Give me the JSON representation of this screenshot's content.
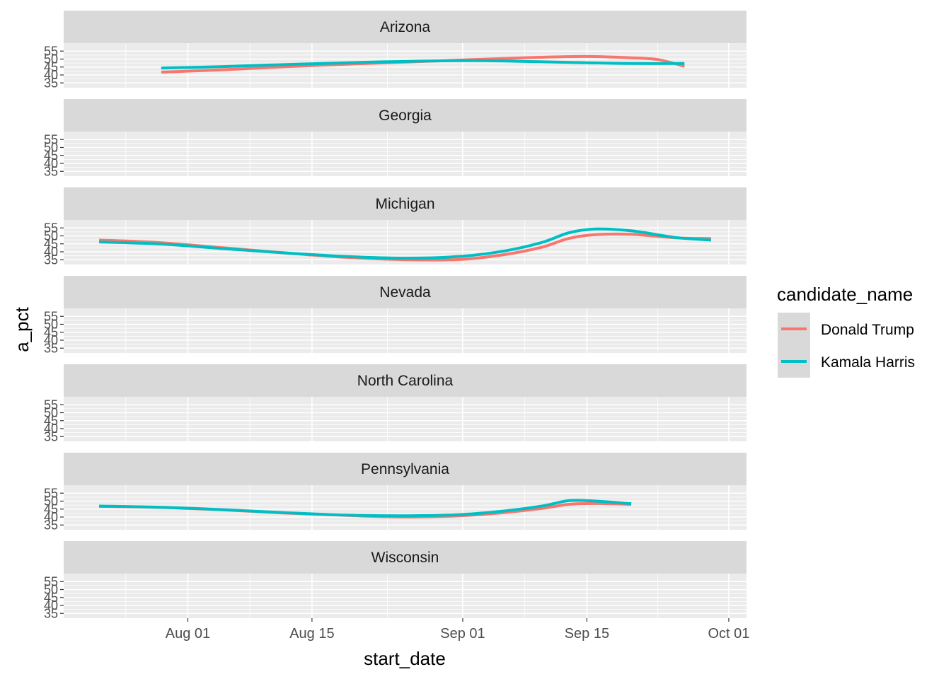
{
  "chart_data": {
    "type": "line",
    "xlabel": "start_date",
    "ylabel": "a_pct",
    "x_range": [
      "2024-07-18",
      "2024-10-03"
    ],
    "x_ticks": [
      {
        "date": "2024-08-01",
        "label": "Aug 01"
      },
      {
        "date": "2024-08-15",
        "label": "Aug 15"
      },
      {
        "date": "2024-09-01",
        "label": "Sep 01"
      },
      {
        "date": "2024-09-15",
        "label": "Sep 15"
      },
      {
        "date": "2024-10-01",
        "label": "Oct 01"
      }
    ],
    "ylim": [
      32,
      60
    ],
    "y_ticks": [
      35,
      40,
      45,
      50,
      55
    ],
    "grid": true,
    "legend": {
      "title": "candidate_name",
      "position": "right",
      "entries": [
        {
          "name": "Donald Trump",
          "color": "#F8766D"
        },
        {
          "name": "Kamala Harris",
          "color": "#00BFC4"
        }
      ]
    },
    "panels": [
      {
        "title": "Arizona",
        "series": [
          {
            "name": "Donald Trump",
            "color": "#F8766D",
            "points": [
              [
                "2024-07-29",
                41.8
              ],
              [
                "2024-08-05",
                43.3
              ],
              [
                "2024-08-12",
                45.2
              ],
              [
                "2024-08-19",
                46.8
              ],
              [
                "2024-08-26",
                48.2
              ],
              [
                "2024-09-02",
                49.6
              ],
              [
                "2024-09-09",
                51.0
              ],
              [
                "2024-09-15",
                51.6
              ],
              [
                "2024-09-20",
                50.8
              ],
              [
                "2024-09-23",
                49.7
              ],
              [
                "2024-09-26",
                45.4
              ]
            ]
          },
          {
            "name": "Kamala Harris",
            "color": "#00BFC4",
            "points": [
              [
                "2024-07-29",
                44.3
              ],
              [
                "2024-08-05",
                45.3
              ],
              [
                "2024-08-12",
                46.6
              ],
              [
                "2024-08-19",
                47.7
              ],
              [
                "2024-08-26",
                48.6
              ],
              [
                "2024-09-02",
                49.0
              ],
              [
                "2024-09-09",
                48.4
              ],
              [
                "2024-09-15",
                47.7
              ],
              [
                "2024-09-20",
                47.2
              ],
              [
                "2024-09-26",
                47.2
              ]
            ]
          }
        ]
      },
      {
        "title": "Georgia",
        "series": []
      },
      {
        "title": "Michigan",
        "series": [
          {
            "name": "Donald Trump",
            "color": "#F8766D",
            "points": [
              [
                "2024-07-22",
                47.4
              ],
              [
                "2024-07-29",
                45.7
              ],
              [
                "2024-08-05",
                42.5
              ],
              [
                "2024-08-12",
                39.3
              ],
              [
                "2024-08-19",
                36.5
              ],
              [
                "2024-08-26",
                35.0
              ],
              [
                "2024-09-01",
                35.3
              ],
              [
                "2024-09-06",
                38.5
              ],
              [
                "2024-09-10",
                43.0
              ],
              [
                "2024-09-13",
                48.5
              ],
              [
                "2024-09-16",
                50.8
              ],
              [
                "2024-09-20",
                51.0
              ],
              [
                "2024-09-25",
                48.8
              ],
              [
                "2024-09-29",
                48.3
              ]
            ]
          },
          {
            "name": "Kamala Harris",
            "color": "#00BFC4",
            "points": [
              [
                "2024-07-22",
                46.2
              ],
              [
                "2024-07-29",
                44.9
              ],
              [
                "2024-08-05",
                42.0
              ],
              [
                "2024-08-12",
                39.3
              ],
              [
                "2024-08-19",
                37.0
              ],
              [
                "2024-08-26",
                36.0
              ],
              [
                "2024-09-01",
                37.2
              ],
              [
                "2024-09-06",
                40.8
              ],
              [
                "2024-09-10",
                46.0
              ],
              [
                "2024-09-13",
                52.0
              ],
              [
                "2024-09-16",
                54.3
              ],
              [
                "2024-09-20",
                53.2
              ],
              [
                "2024-09-25",
                49.0
              ],
              [
                "2024-09-29",
                47.4
              ]
            ]
          }
        ]
      },
      {
        "title": "Nevada",
        "series": []
      },
      {
        "title": "North Carolina",
        "series": []
      },
      {
        "title": "Pennsylvania",
        "series": [
          {
            "name": "Donald Trump",
            "color": "#F8766D",
            "points": [
              [
                "2024-07-22",
                46.7
              ],
              [
                "2024-07-29",
                46.0
              ],
              [
                "2024-08-05",
                44.5
              ],
              [
                "2024-08-12",
                42.5
              ],
              [
                "2024-08-19",
                41.0
              ],
              [
                "2024-08-26",
                40.0
              ],
              [
                "2024-09-01",
                40.9
              ],
              [
                "2024-09-06",
                43.0
              ],
              [
                "2024-09-10",
                45.5
              ],
              [
                "2024-09-13",
                48.0
              ],
              [
                "2024-09-16",
                48.5
              ],
              [
                "2024-09-20",
                48.0
              ]
            ]
          },
          {
            "name": "Kamala Harris",
            "color": "#00BFC4",
            "points": [
              [
                "2024-07-22",
                46.9
              ],
              [
                "2024-07-29",
                46.1
              ],
              [
                "2024-08-05",
                44.6
              ],
              [
                "2024-08-12",
                42.7
              ],
              [
                "2024-08-19",
                41.2
              ],
              [
                "2024-08-26",
                40.8
              ],
              [
                "2024-09-01",
                41.6
              ],
              [
                "2024-09-06",
                44.0
              ],
              [
                "2024-09-10",
                47.0
              ],
              [
                "2024-09-13",
                50.3
              ],
              [
                "2024-09-16",
                50.0
              ],
              [
                "2024-09-20",
                48.4
              ]
            ]
          }
        ]
      },
      {
        "title": "Wisconsin",
        "series": []
      }
    ]
  }
}
